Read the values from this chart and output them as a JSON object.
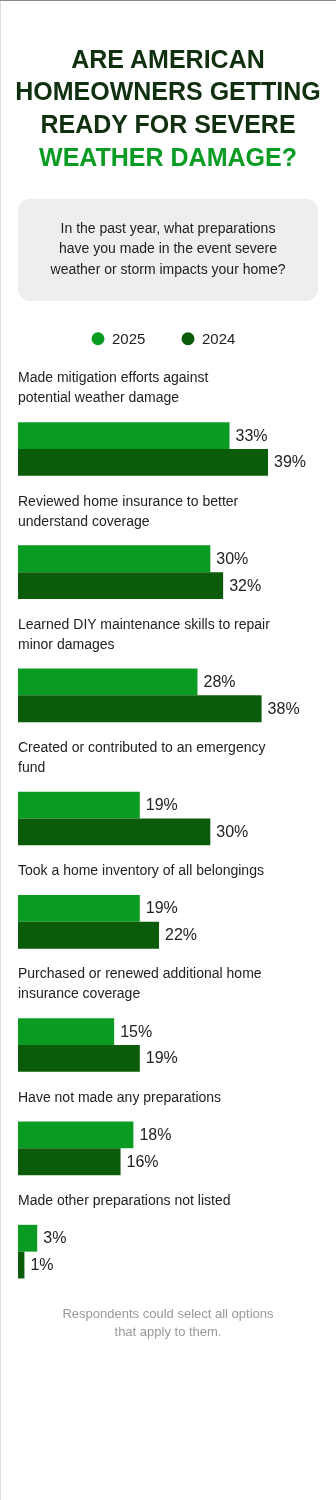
{
  "chart_data": {
    "type": "bar",
    "orientation": "horizontal",
    "title": "ARE AMERICAN HOMEOWNERS GETTING READY FOR SEVERE WEATHER DAMAGE?",
    "subtitle": "In the past year, what preparations have you made in the event severe weather or storm impacts your home?",
    "categories": [
      "Made mitigation efforts against potential weather damage",
      "Reviewed home insurance to better understand coverage",
      "Learned DIY maintenance skills to repair minor damages",
      "Created or contributed to an emergency fund",
      "Took a home inventory of all belongings",
      "Purchased or renewed additional home insurance coverage",
      "Have not made any preparations",
      "Made other preparations not listed"
    ],
    "series": [
      {
        "name": "2025",
        "color": "#0a9b23",
        "values": [
          33,
          30,
          28,
          19,
          19,
          15,
          18,
          3
        ],
        "value_labels": [
          "33%",
          "30%",
          "28%",
          "19%",
          "19%",
          "15%",
          "18%",
          "3%"
        ]
      },
      {
        "name": "2024",
        "color": "#0a5c0a",
        "values": [
          39,
          32,
          38,
          30,
          22,
          19,
          16,
          1
        ],
        "value_labels": [
          "39%",
          "32%",
          "38%",
          "30%",
          "22%",
          "19%",
          "16%",
          "1%"
        ]
      }
    ],
    "legend": "top",
    "annotations": [
      "Respondents could select all options that apply to them."
    ]
  }
}
